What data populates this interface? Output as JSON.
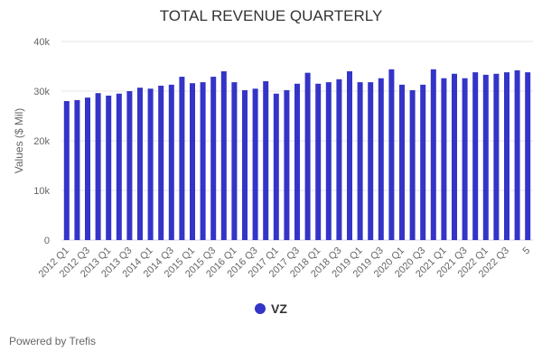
{
  "chart_data": {
    "type": "bar",
    "title": "TOTAL REVENUE QUARTERLY",
    "ylabel": "Values ($ Mil)",
    "xlabel": "",
    "ylim": [
      0,
      40000
    ],
    "yticks": [
      0,
      10000,
      20000,
      30000,
      40000
    ],
    "ytick_labels": [
      "0",
      "10k",
      "20k",
      "30k",
      "40k"
    ],
    "grid": true,
    "legend_position": "bottom",
    "categories": [
      "2012 Q1",
      "2012 Q2",
      "2012 Q3",
      "2012 Q4",
      "2013 Q1",
      "2013 Q2",
      "2013 Q3",
      "2013 Q4",
      "2014 Q1",
      "2014 Q2",
      "2014 Q3",
      "2014 Q4",
      "2015 Q1",
      "2015 Q2",
      "2015 Q3",
      "2015 Q4",
      "2016 Q1",
      "2016 Q2",
      "2016 Q3",
      "2016 Q4",
      "2017 Q1",
      "2017 Q2",
      "2017 Q3",
      "2017 Q4",
      "2018 Q1",
      "2018 Q2",
      "2018 Q3",
      "2018 Q4",
      "2019 Q1",
      "2019 Q2",
      "2019 Q3",
      "2019 Q4",
      "2020 Q1",
      "2020 Q2",
      "2020 Q3",
      "2020 Q4",
      "2021 Q1",
      "2021 Q2",
      "2021 Q3",
      "2021 Q4",
      "2022 Q1",
      "2022 Q2",
      "2022 Q3",
      "2022 Q4",
      "5"
    ],
    "xtick_labels": [
      "2012 Q1",
      "2012 Q3",
      "2013 Q1",
      "2013 Q3",
      "2014 Q1",
      "2014 Q3",
      "2015 Q1",
      "2015 Q3",
      "2016 Q1",
      "2016 Q3",
      "2017 Q1",
      "2017 Q3",
      "2018 Q1",
      "2018 Q3",
      "2019 Q1",
      "2019 Q3",
      "2020 Q1",
      "2020 Q3",
      "2021 Q1",
      "2021 Q3",
      "2022 Q1",
      "2022 Q3",
      "5"
    ],
    "series": [
      {
        "name": "VZ",
        "color": "#3434c8",
        "values": [
          28000,
          28200,
          28700,
          29600,
          29100,
          29500,
          30000,
          30700,
          30500,
          31100,
          31300,
          32900,
          31600,
          31800,
          32900,
          34000,
          31800,
          30200,
          30500,
          32000,
          29500,
          30200,
          31500,
          33700,
          31500,
          31800,
          32400,
          34000,
          31800,
          31800,
          32600,
          34400,
          31300,
          30200,
          31300,
          34400,
          32600,
          33500,
          32600,
          33800,
          33300,
          33500,
          33800,
          34200,
          33800
        ]
      }
    ]
  },
  "footer": {
    "powered": "Powered by Trefis"
  }
}
